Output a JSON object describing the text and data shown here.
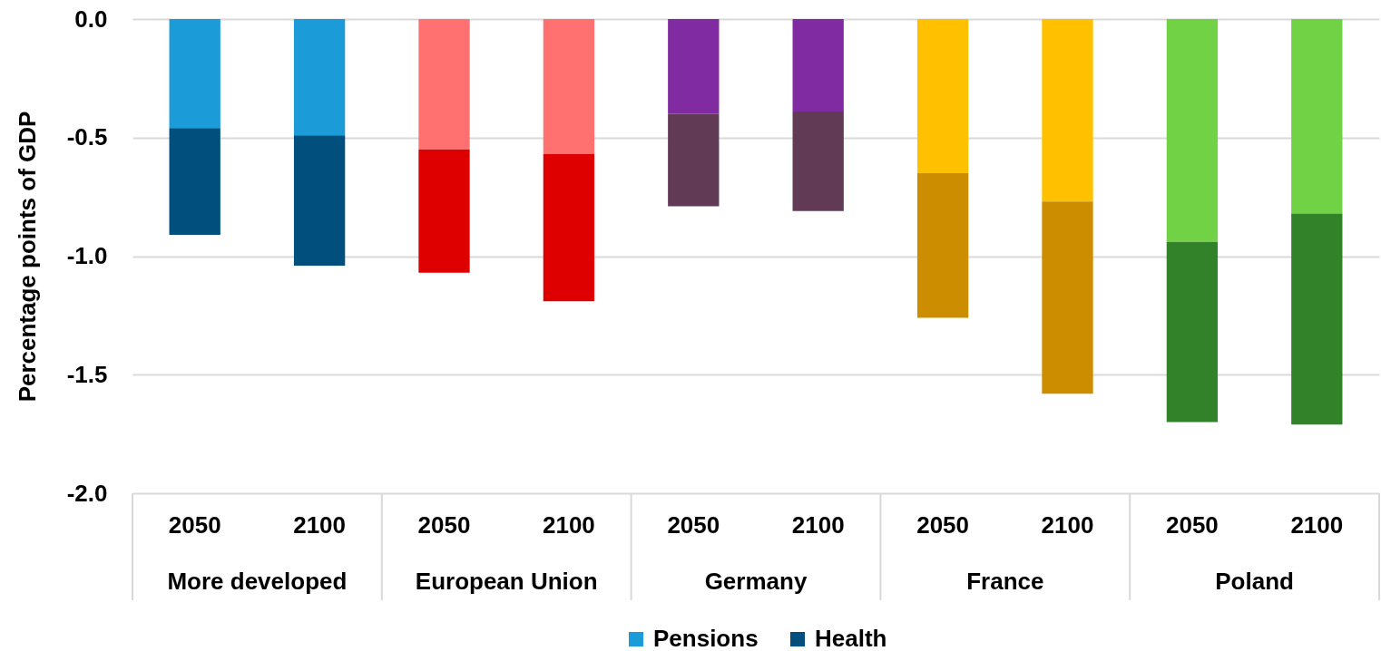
{
  "chart_data": {
    "type": "bar",
    "stacked": true,
    "ylabel": "Percentage points of GDP",
    "categories": [
      "2050",
      "2100",
      "2050",
      "2100",
      "2050",
      "2100",
      "2050",
      "2100",
      "2050",
      "2100"
    ],
    "annotations": [
      "More developed",
      "European Union",
      "Germany",
      "France",
      "Poland"
    ],
    "series": [
      {
        "name": "Pensions",
        "color": "#1b9bd7",
        "colors": [
          "#1b9bd7",
          "#1b9bd7",
          "#ff7171",
          "#ff7171",
          "#812ba2",
          "#812ba2",
          "#ffc000",
          "#ffc000",
          "#70d244",
          "#70d244"
        ],
        "values": [
          -0.46,
          -0.49,
          -0.55,
          -0.57,
          -0.4,
          -0.39,
          -0.65,
          -0.77,
          -0.94,
          -0.82
        ]
      },
      {
        "name": "Health",
        "color": "#004f7c",
        "colors": [
          "#004f7c",
          "#004f7c",
          "#de0000",
          "#de0000",
          "#613b56",
          "#613b56",
          "#cc8e00",
          "#cc8e00",
          "#32822a",
          "#32822a"
        ],
        "values": [
          -0.45,
          -0.55,
          -0.52,
          -0.62,
          -0.39,
          -0.42,
          -0.61,
          -0.81,
          -0.76,
          -0.89
        ]
      }
    ],
    "ylim": [
      -2,
      0
    ],
    "yticks": [
      {
        "value": -2,
        "label": "-2.0"
      },
      {
        "value": -1.5,
        "label": "-1.5"
      },
      {
        "value": -1,
        "label": "-1.0"
      },
      {
        "value": -0.5,
        "label": "-0.5"
      },
      {
        "value": 0,
        "label": "0.0"
      }
    ],
    "grid": "y",
    "legend": "bottom"
  }
}
